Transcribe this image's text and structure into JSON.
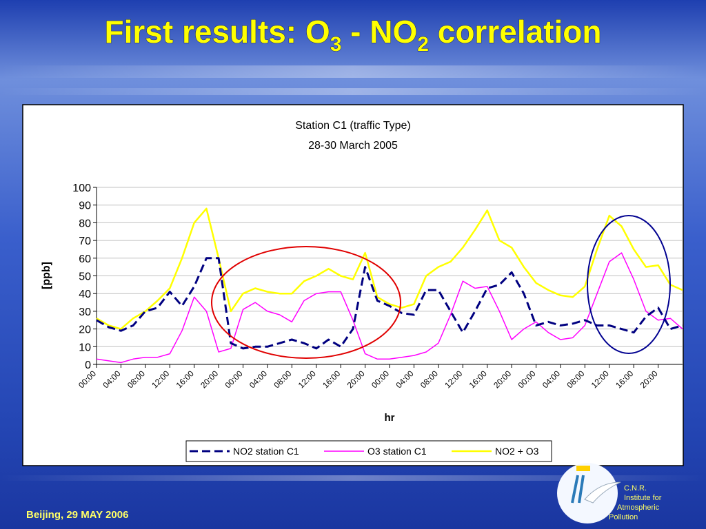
{
  "slide": {
    "title": [
      "First results: O",
      "3",
      " - NO",
      "2",
      " correlation"
    ],
    "footer": "Beijing, 29  MAY 2006",
    "logo": [
      "C.N.R.",
      "Institute for",
      "Atmospheric",
      "Pollution"
    ]
  },
  "chart_data": {
    "type": "line",
    "title": "Station C1 (traffic Type)",
    "subtitle": "28-30 March 2005",
    "y_label": "[ppb]",
    "x_label": "hr",
    "categories": [
      "00:00",
      null,
      "04:00",
      null,
      "08:00",
      null,
      "12:00",
      null,
      "16:00",
      null,
      "20:00",
      null,
      "00:00",
      null,
      "04:00",
      null,
      "08:00",
      null,
      "12:00",
      null,
      "16:00",
      null,
      "20:00",
      null,
      "00:00",
      null,
      "04:00",
      null,
      "08:00",
      null,
      "12:00",
      null,
      "16:00",
      null,
      "20:00",
      null,
      "00:00",
      null,
      "04:00",
      null,
      "08:00",
      null,
      "12:00",
      null,
      "16:00",
      null,
      "20:00",
      null,
      null
    ],
    "series": [
      {
        "name": "NO2 station C1",
        "color": "#000080",
        "dash": true,
        "values": [
          25,
          21,
          19,
          22,
          30,
          32,
          41,
          33,
          44,
          60,
          60,
          12,
          9,
          10,
          10,
          12,
          14,
          12,
          9,
          14,
          10,
          20,
          55,
          36,
          33,
          29,
          28,
          42,
          42,
          30,
          18,
          30,
          43,
          45,
          52,
          40,
          22,
          24,
          22,
          23,
          25,
          22,
          22,
          20,
          18,
          27,
          32,
          20,
          22
        ]
      },
      {
        "name": "O3 station C1",
        "color": "#ff00ff",
        "dash": false,
        "values": [
          3,
          2,
          1,
          3,
          4,
          4,
          6,
          19,
          38,
          30,
          7,
          9,
          31,
          35,
          30,
          28,
          24,
          36,
          40,
          41,
          41,
          25,
          6,
          3,
          3,
          4,
          5,
          7,
          12,
          28,
          47,
          43,
          44,
          30,
          14,
          20,
          24,
          18,
          14,
          15,
          22,
          40,
          58,
          63,
          48,
          30,
          25,
          26,
          20
        ]
      },
      {
        "name": "NO2 + O3",
        "color": "#ffff00",
        "dash": false,
        "values": [
          26,
          22,
          20,
          26,
          30,
          36,
          43,
          60,
          80,
          88,
          60,
          30,
          40,
          43,
          41,
          40,
          40,
          47,
          50,
          54,
          50,
          48,
          63,
          38,
          34,
          32,
          34,
          50,
          55,
          58,
          66,
          76,
          87,
          70,
          66,
          55,
          46,
          42,
          39,
          38,
          44,
          65,
          84,
          78,
          65,
          55,
          56,
          45,
          42
        ]
      }
    ],
    "ylim": [
      0,
      100
    ],
    "yticks": [
      0,
      10,
      20,
      30,
      40,
      50,
      60,
      70,
      80,
      90,
      100
    ],
    "grid": true
  }
}
